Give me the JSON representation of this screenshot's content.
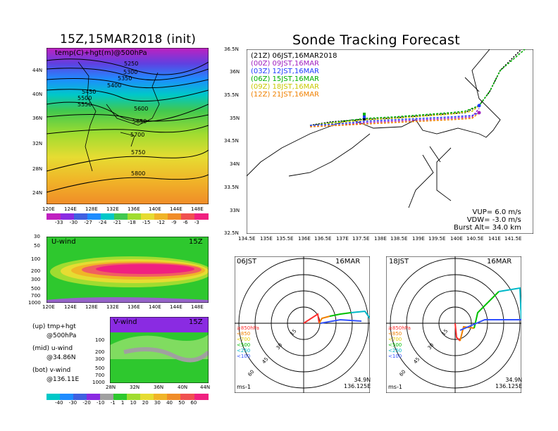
{
  "left": {
    "title": "15Z,15MAR2018 (init)",
    "map_label": "temp(C)+hgt(m)@500hPa",
    "contours": [
      "5250",
      "5300",
      "5350",
      "5400",
      "5450",
      "5500",
      "5550",
      "5600",
      "5650",
      "5700",
      "5750",
      "5800"
    ],
    "lat_labels": [
      "44N",
      "40N",
      "36N",
      "32N",
      "28N",
      "24N"
    ],
    "lon_labels": [
      "120E",
      "124E",
      "128E",
      "132E",
      "136E",
      "140E",
      "144E",
      "148E"
    ],
    "temp_colorbar": [
      "-33",
      "-30",
      "-27",
      "-24",
      "-21",
      "-18",
      "-15",
      "-12",
      "-9",
      "-6",
      "-3"
    ],
    "uwind_title": "U-wind",
    "uwind_time": "15Z",
    "vwind_title": "V-wind",
    "vwind_time": "15Z",
    "p_labels_u": [
      "30",
      "50",
      "100",
      "200",
      "300",
      "500",
      "700",
      "1000"
    ],
    "p_labels_v": [
      "100",
      "200",
      "300",
      "500",
      "700",
      "1000"
    ],
    "v_lat_labels": [
      "28N",
      "32N",
      "36N",
      "40N",
      "44N"
    ],
    "legend": [
      "(up) tmp+hgt",
      "@500hPa",
      "(mid) u-wind",
      "@34.86N",
      "(bot) v-wind",
      "@136.11E"
    ],
    "wind_colorbar": [
      "-40",
      "-30",
      "-20",
      "-10",
      "-1",
      "1",
      "10",
      "20",
      "30",
      "40",
      "50",
      "60"
    ]
  },
  "right": {
    "title": "Sonde Tracking Forecast",
    "runs": [
      {
        "label": "(21Z)  06JST,16MAR2018",
        "color": "#000000"
      },
      {
        "label": "(00Z)  09JST,16MAR",
        "color": "#a020c0"
      },
      {
        "label": "(03Z)  12JST,16MAR",
        "color": "#1e3cff"
      },
      {
        "label": "(06Z)  15JST,16MAR",
        "color": "#00b000"
      },
      {
        "label": "(09Z)  18JST,16MAR",
        "color": "#c8c800"
      },
      {
        "label": "(12Z)  21JST,16MAR",
        "color": "#f08000"
      }
    ],
    "lat_labels": [
      "36.5N",
      "36N",
      "35.5N",
      "35N",
      "34.5N",
      "34N",
      "33.5N",
      "33N",
      "32.5N"
    ],
    "lon_labels": [
      "134.5E",
      "135E",
      "135.5E",
      "136E",
      "136.5E",
      "137E",
      "137.5E",
      "138E",
      "138.5E",
      "139E",
      "139.5E",
      "140E",
      "140.5E",
      "141E",
      "141.5E"
    ],
    "params": [
      "VUP=  6.0 m/s",
      "VDW= -3.0 m/s",
      "Burst Alt= 34.0 km"
    ],
    "hodo_left": {
      "time": "06JST",
      "date": "16MAR",
      "pos1": "34.9N",
      "pos2": "136.125E"
    },
    "hodo_right": {
      "time": "18JST",
      "date": "16MAR",
      "pos1": "34.9N",
      "pos2": "136.125E"
    },
    "ring_labels": [
      "15",
      "30",
      "45",
      "60"
    ],
    "unit": "ms-1",
    "levels": [
      {
        "label": "≥850hPa",
        "color": "#ff3030"
      },
      {
        "label": "<850",
        "color": "#f08000"
      },
      {
        "label": "<700",
        "color": "#e6c800"
      },
      {
        "label": "<500",
        "color": "#00c000"
      },
      {
        "label": "<250",
        "color": "#00b8c8"
      },
      {
        "label": "<100",
        "color": "#3050ff"
      }
    ]
  }
}
